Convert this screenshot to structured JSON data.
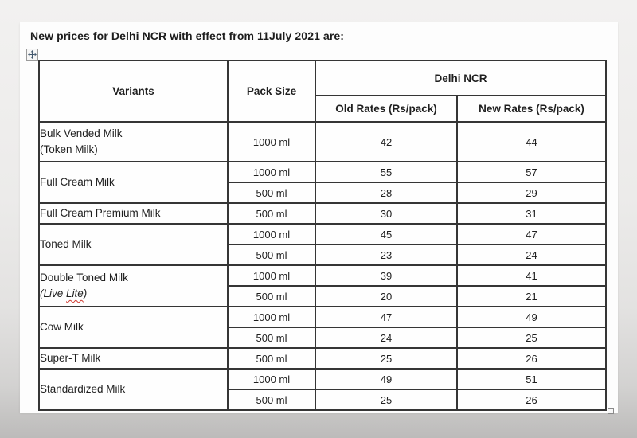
{
  "document": {
    "title": "New prices for Delhi NCR with effect from 11July 2021 are:"
  },
  "colors": {
    "table_border": "#353535",
    "text": "#1f1f1f",
    "page_background": "#fdfdfd",
    "canvas_background": "#e9e8e7",
    "spellcheck_squiggle": "#cf3a30"
  },
  "icons": {
    "move_handle": "move-cross-icon",
    "resize_handle": "resize-square-icon"
  },
  "table": {
    "headers": {
      "variants": "Variants",
      "pack_size": "Pack Size",
      "region": "Delhi NCR",
      "old_rates": "Old Rates (Rs/pack)",
      "new_rates": "New Rates (Rs/pack)"
    },
    "groups": [
      {
        "variant": "Bulk Vended Milk",
        "variant_line2": "(Token Milk)",
        "tall": true,
        "entries": [
          {
            "pack": "1000 ml",
            "old": "42",
            "new": "44"
          }
        ]
      },
      {
        "variant": "Full Cream Milk",
        "entries": [
          {
            "pack": "1000 ml",
            "old": "55",
            "new": "57"
          },
          {
            "pack": "500 ml",
            "old": "28",
            "new": "29"
          }
        ]
      },
      {
        "variant": "Full Cream Premium Milk",
        "entries": [
          {
            "pack": "500 ml",
            "old": "30",
            "new": "31"
          }
        ]
      },
      {
        "variant": "Toned Milk",
        "entries": [
          {
            "pack": "1000 ml",
            "old": "45",
            "new": "47"
          },
          {
            "pack": "500 ml",
            "old": "23",
            "new": "24"
          }
        ]
      },
      {
        "variant": "Double Toned Milk",
        "variant_line2": "(Live Lite)",
        "italic_line2": true,
        "squiggle_word": "Lite",
        "entries": [
          {
            "pack": "1000 ml",
            "old": "39",
            "new": "41"
          },
          {
            "pack": "500 ml",
            "old": "20",
            "new": "21"
          }
        ]
      },
      {
        "variant": "Cow Milk",
        "entries": [
          {
            "pack": "1000 ml",
            "old": "47",
            "new": "49"
          },
          {
            "pack": "500 ml",
            "old": "24",
            "new": "25"
          }
        ]
      },
      {
        "variant": "Super-T Milk",
        "entries": [
          {
            "pack": "500 ml",
            "old": "25",
            "new": "26"
          }
        ]
      },
      {
        "variant": "Standardized Milk",
        "entries": [
          {
            "pack": "1000 ml",
            "old": "49",
            "new": "51"
          },
          {
            "pack": "500 ml",
            "old": "25",
            "new": "26"
          }
        ]
      }
    ]
  }
}
